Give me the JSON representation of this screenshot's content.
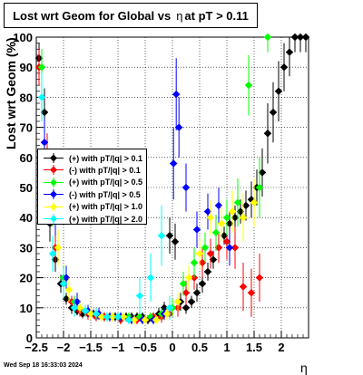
{
  "title": {
    "prefix": "Lost wrt Geom for Global vs",
    "symbol": "η",
    "suffix": "at pT > 0.11"
  },
  "footer": "Wed Sep 18 16:33:03 2024",
  "legend": [
    {
      "label": "(+) with pT/|q| > 0.1",
      "color": "#000000"
    },
    {
      "label": "(-) with pT/|q| > 0.1",
      "color": "#ff0000"
    },
    {
      "label": "(+) with pT/|q| > 0.5",
      "color": "#00ff00"
    },
    {
      "label": "(-) with pT/|q| > 0.5",
      "color": "#0000ff"
    },
    {
      "label": "(+) with pT/|q| > 1.0",
      "color": "#ffff00"
    },
    {
      "label": "(+) with pT/|q| > 2.0",
      "color": "#00ffff"
    }
  ],
  "chart_data": {
    "type": "scatter",
    "xlabel": "η",
    "ylabel": "Lost wrt Geom (%)",
    "xlim": [
      -2.5,
      2.5
    ],
    "ylim": [
      0,
      100
    ],
    "grid": true,
    "legend_position": "middle-left",
    "x_ticks": [
      "−2.5",
      "−2",
      "−1.5",
      "−1",
      "−0.5",
      "0",
      "0.5",
      "1",
      "1.5",
      "2"
    ],
    "y_ticks": [
      "0",
      "10",
      "20",
      "30",
      "40",
      "50",
      "60",
      "70",
      "80",
      "90",
      "100"
    ],
    "series": [
      {
        "name": "(+) with pT/|q| > 0.1",
        "color": "#000000",
        "x": [
          -2.45,
          -2.35,
          -2.25,
          -2.15,
          -2.05,
          -1.95,
          -1.85,
          -1.75,
          -1.65,
          -1.55,
          -1.45,
          -1.35,
          -1.25,
          -1.15,
          -1.05,
          -0.95,
          -0.85,
          -0.75,
          -0.65,
          -0.55,
          -0.45,
          -0.35,
          -0.25,
          -0.15,
          -0.05,
          0.05,
          0.15,
          0.25,
          0.35,
          0.45,
          0.55,
          0.65,
          0.75,
          0.85,
          0.95,
          1.05,
          1.15,
          1.25,
          1.35,
          1.45,
          1.55,
          1.65,
          1.75,
          1.85,
          1.95,
          2.05,
          2.15,
          2.25,
          2.35,
          2.45
        ],
        "y": [
          93,
          75,
          38,
          26,
          18,
          13,
          10,
          9,
          8,
          8,
          8,
          8,
          7,
          7,
          7,
          7,
          7,
          7,
          7,
          7,
          6,
          7,
          8,
          10,
          34,
          32,
          12,
          10,
          12,
          15,
          18,
          22,
          26,
          30,
          34,
          38,
          40,
          42,
          44,
          46,
          50,
          55,
          68,
          75,
          82,
          90,
          95,
          100,
          100,
          100
        ],
        "err": [
          5,
          8,
          6,
          4,
          3,
          2,
          2,
          1.5,
          1.5,
          1.5,
          1.5,
          1.5,
          1.5,
          1.5,
          1.5,
          1.5,
          1.5,
          1.5,
          1.5,
          1.5,
          1.5,
          1.5,
          2,
          2,
          6,
          6,
          3,
          2,
          2,
          3,
          3,
          3,
          3,
          3,
          3,
          4,
          4,
          4,
          5,
          6,
          6,
          8,
          10,
          10,
          10,
          8,
          8,
          5,
          5,
          5
        ]
      },
      {
        "name": "(-) with pT/|q| > 0.1",
        "color": "#ff0000",
        "x": [
          -2.45,
          -2.3,
          -2.15,
          -2.0,
          -1.85,
          -1.7,
          -1.55,
          -1.4,
          -1.25,
          -1.1,
          -0.95,
          -0.8,
          -0.65,
          -0.5,
          -0.35,
          -0.2,
          -0.05,
          0.1,
          0.25,
          0.4,
          0.55,
          0.7,
          0.85,
          1.0,
          1.15,
          1.3,
          1.45,
          1.6
        ],
        "y": [
          90,
          60,
          30,
          18,
          12,
          9,
          8,
          7,
          7,
          7,
          6,
          6,
          6,
          6,
          7,
          7,
          8,
          10,
          15,
          20,
          25,
          28,
          30,
          32,
          30,
          17,
          15,
          20
        ],
        "err": [
          6,
          8,
          5,
          3,
          2,
          2,
          2,
          1.5,
          1.5,
          1.5,
          1.5,
          1.5,
          1.5,
          1.5,
          1.5,
          2,
          2,
          3,
          4,
          4,
          5,
          5,
          5,
          6,
          7,
          8,
          8,
          8
        ]
      },
      {
        "name": "(+) with pT/|q| > 0.5",
        "color": "#00ff00",
        "x": [
          -2.4,
          -2.2,
          -2.0,
          -1.8,
          -1.6,
          -1.4,
          -1.2,
          -1.0,
          -0.8,
          -0.6,
          -0.4,
          -0.2,
          0.0,
          0.2,
          0.4,
          0.6,
          0.8,
          1.0,
          1.2,
          1.4,
          1.6,
          1.75
        ],
        "y": [
          90,
          45,
          20,
          12,
          9,
          8,
          7,
          7,
          7,
          7,
          7,
          8,
          10,
          18,
          25,
          30,
          35,
          40,
          45,
          84,
          50,
          100
        ],
        "err": [
          6,
          8,
          4,
          2,
          2,
          1.5,
          1.5,
          1.5,
          1.5,
          1.5,
          1.5,
          2,
          3,
          4,
          5,
          5,
          6,
          6,
          8,
          10,
          10,
          5
        ]
      },
      {
        "name": "(-) with pT/|q| > 0.5",
        "color": "#0000ff",
        "x": [
          -2.35,
          -2.15,
          -1.95,
          -1.75,
          -1.55,
          -1.35,
          -1.15,
          -0.95,
          -0.75,
          -0.55,
          -0.35,
          -0.15,
          0.02,
          0.07,
          0.12,
          0.25,
          0.45,
          0.65,
          0.85,
          1.05
        ],
        "y": [
          65,
          40,
          20,
          12,
          9,
          8,
          7,
          7,
          6,
          6,
          6,
          8,
          58,
          81,
          70,
          50,
          36,
          42,
          44,
          30
        ],
        "err": [
          8,
          6,
          4,
          3,
          2,
          2,
          1.5,
          1.5,
          1.5,
          1.5,
          1.5,
          2,
          12,
          12,
          10,
          8,
          6,
          6,
          6,
          6
        ]
      },
      {
        "name": "(+) with pT/|q| > 1.0",
        "color": "#ffff00",
        "x": [
          -2.3,
          -2.1,
          -1.9,
          -1.7,
          -1.5,
          -1.3,
          -1.1,
          -0.9,
          -0.7,
          -0.5,
          -0.3,
          -0.1,
          0.1,
          0.3,
          0.5,
          0.7,
          0.9,
          1.1,
          1.3,
          1.5
        ],
        "y": [
          50,
          30,
          16,
          10,
          8,
          7,
          7,
          7,
          6,
          6,
          6,
          8,
          12,
          20,
          28,
          40,
          38,
          42,
          40,
          45
        ],
        "err": [
          8,
          6,
          4,
          2,
          2,
          1.5,
          1.5,
          1.5,
          1.5,
          1.5,
          1.5,
          2,
          3,
          4,
          5,
          6,
          6,
          7,
          8,
          8
        ]
      },
      {
        "name": "(+) with pT/|q| > 2.0",
        "color": "#00ffff",
        "x": [
          -2.4,
          -2.2,
          -2.0,
          -1.8,
          -1.6,
          -1.4,
          -1.2,
          -1.0,
          -0.8,
          -0.6,
          -0.4,
          -0.2,
          -0.05
        ],
        "y": [
          80,
          28,
          18,
          10,
          9,
          8,
          7,
          7,
          6,
          14,
          20,
          34,
          10
        ],
        "err": [
          8,
          6,
          5,
          3,
          2,
          2,
          1.5,
          1.5,
          1.5,
          6,
          8,
          10,
          4
        ]
      }
    ]
  }
}
